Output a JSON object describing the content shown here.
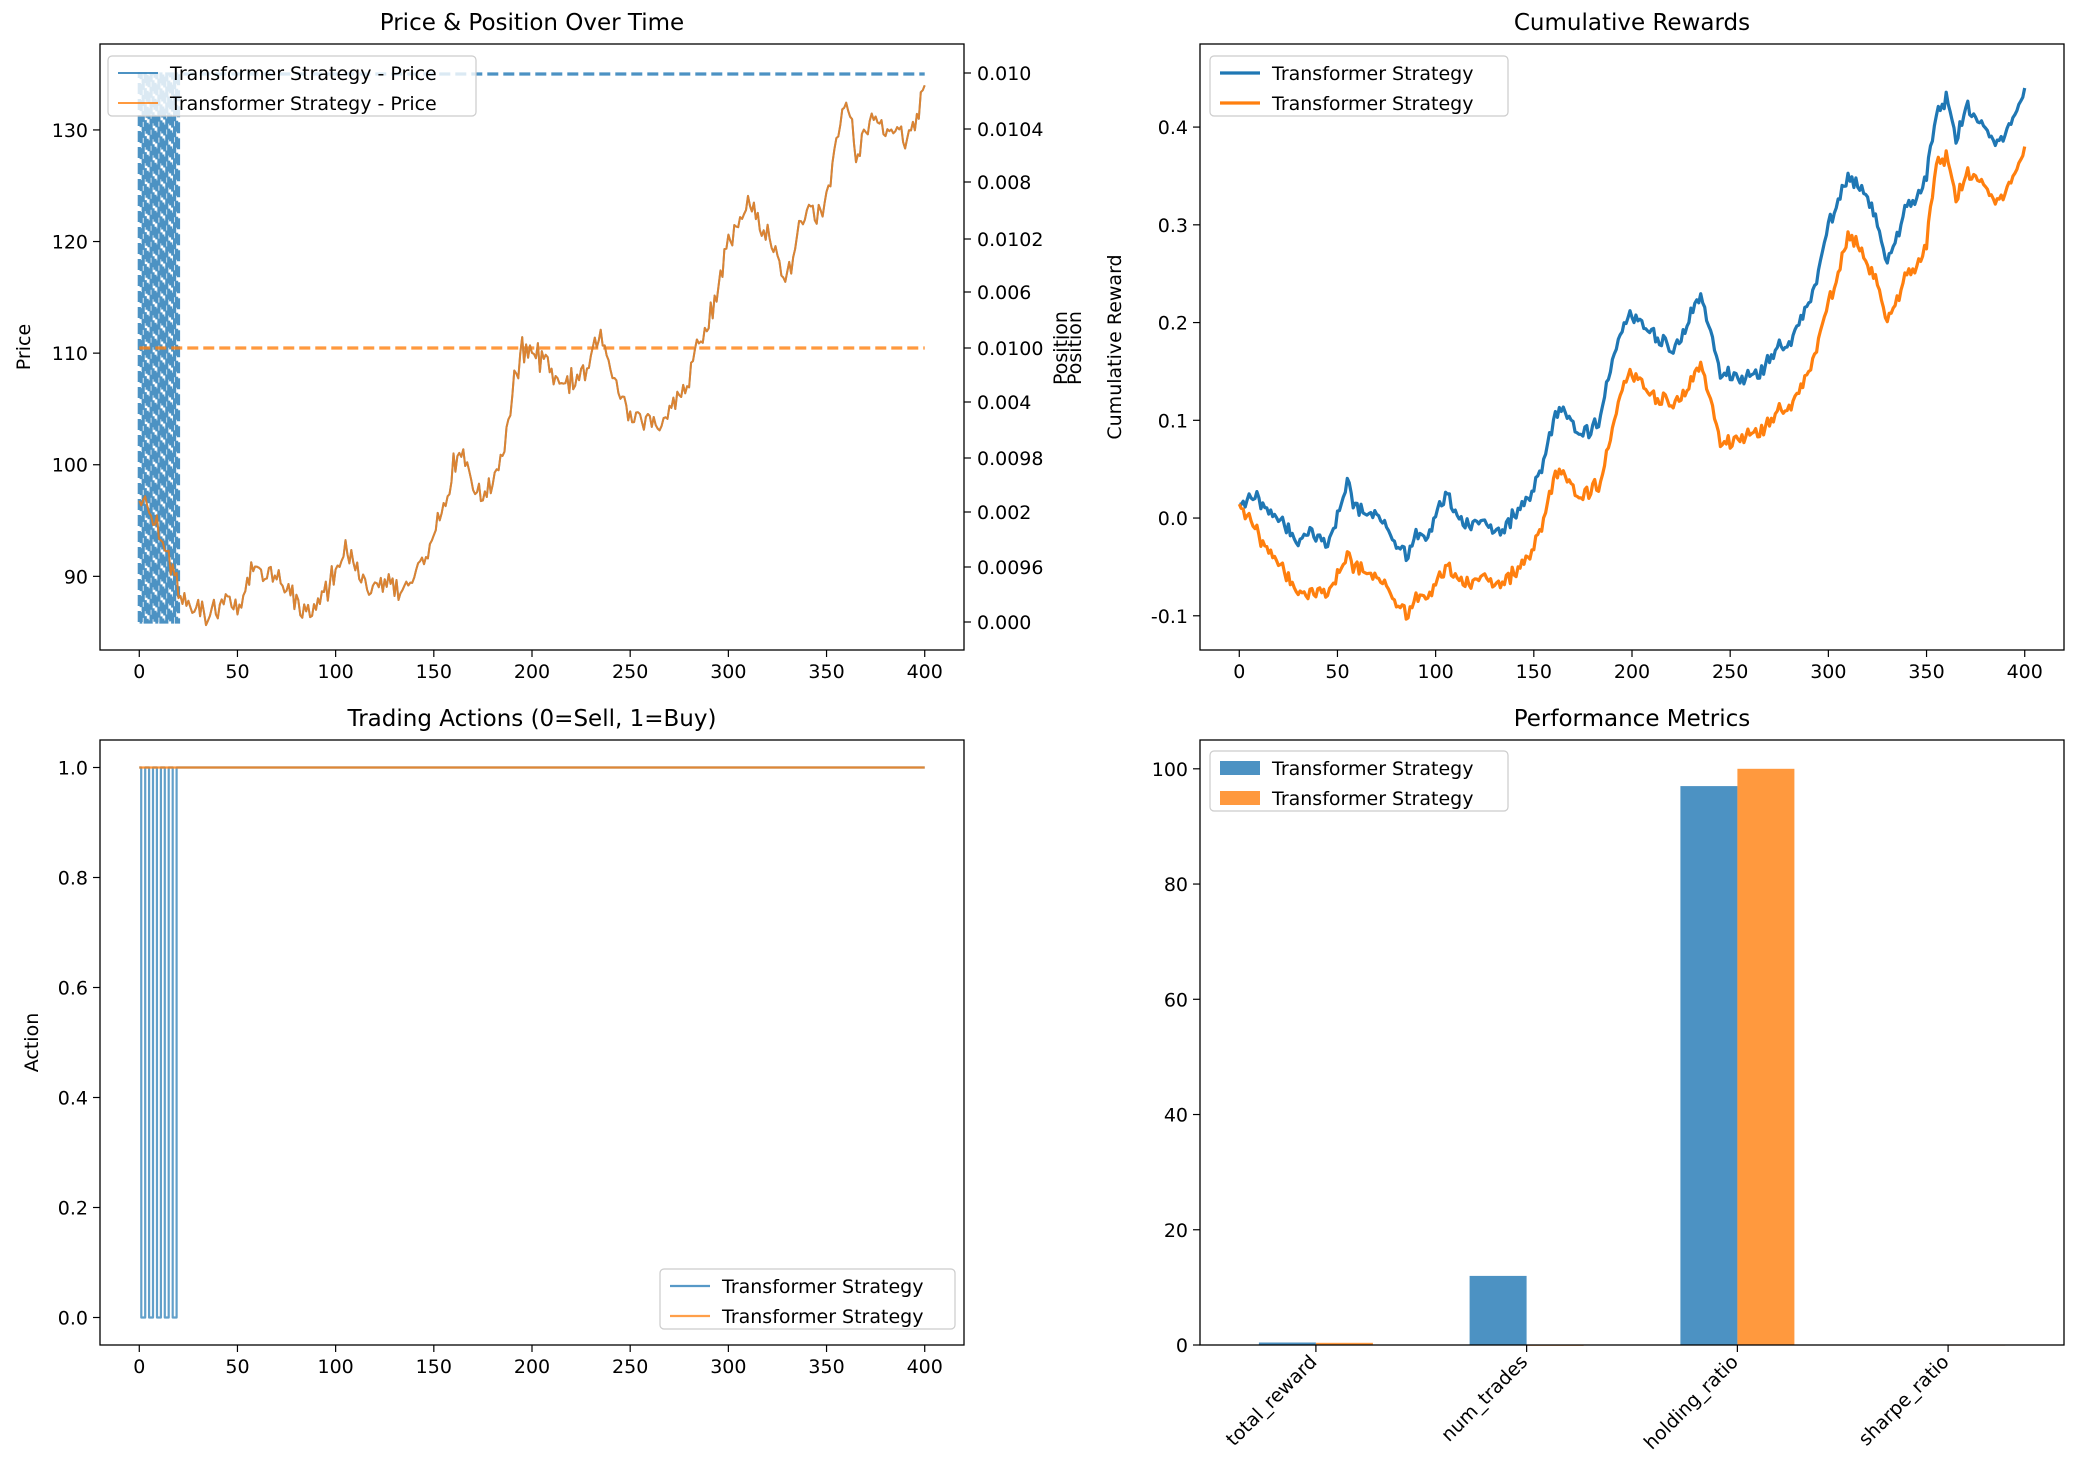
{
  "colors": {
    "blue": "#1f77b4",
    "orange": "#ff7f0e",
    "mixed": "#c8874a"
  },
  "chart_data": [
    {
      "id": "price",
      "type": "line",
      "title": "Price & Position Over Time",
      "xlabel": "",
      "ylabel": "Price",
      "y2label": "Position",
      "xlim": [
        -20,
        420
      ],
      "ylim": [
        83.4,
        137.7
      ],
      "xticks": [
        "0",
        "50",
        "100",
        "150",
        "200",
        "250",
        "300",
        "350",
        "400"
      ],
      "yticks": [
        "90",
        "100",
        "110",
        "120",
        "130"
      ],
      "y2ticks_blue": [
        "0.000",
        "0.002",
        "0.004",
        "0.006",
        "0.008",
        "0.010"
      ],
      "y2ticks_orange": [
        "0.0096",
        "0.0098",
        "0.0100",
        "0.0102",
        "0.0104"
      ],
      "legend": [
        "Transformer Strategy - Price",
        "Transformer Strategy - Price"
      ],
      "price_points": [
        [
          0,
          97.5
        ],
        [
          5,
          96.2
        ],
        [
          10,
          94.5
        ],
        [
          15,
          91.0
        ],
        [
          20,
          89.0
        ],
        [
          25,
          87.6
        ],
        [
          30,
          88.0
        ],
        [
          35,
          86.0
        ],
        [
          40,
          87.2
        ],
        [
          45,
          88.0
        ],
        [
          50,
          87.0
        ],
        [
          55,
          89.0
        ],
        [
          60,
          91.5
        ],
        [
          65,
          90.0
        ],
        [
          70,
          91.0
        ],
        [
          75,
          89.0
        ],
        [
          80,
          87.5
        ],
        [
          85,
          86.5
        ],
        [
          90,
          87.5
        ],
        [
          95,
          89.0
        ],
        [
          100,
          90.0
        ],
        [
          105,
          92.5
        ],
        [
          110,
          90.5
        ],
        [
          115,
          89.5
        ],
        [
          120,
          89.0
        ],
        [
          125,
          90.0
        ],
        [
          130,
          88.5
        ],
        [
          135,
          88.8
        ],
        [
          140,
          89.5
        ],
        [
          145,
          91.5
        ],
        [
          150,
          94.0
        ],
        [
          155,
          96.0
        ],
        [
          160,
          100.0
        ],
        [
          165,
          100.5
        ],
        [
          170,
          98.0
        ],
        [
          175,
          97.0
        ],
        [
          180,
          98.0
        ],
        [
          185,
          100.5
        ],
        [
          190,
          107.0
        ],
        [
          195,
          110.5
        ],
        [
          200,
          110.5
        ],
        [
          205,
          109.5
        ],
        [
          210,
          108.5
        ],
        [
          215,
          107.0
        ],
        [
          220,
          108.0
        ],
        [
          225,
          107.5
        ],
        [
          230,
          110.0
        ],
        [
          235,
          112.0
        ],
        [
          240,
          108.5
        ],
        [
          245,
          106.0
        ],
        [
          250,
          104.5
        ],
        [
          255,
          103.5
        ],
        [
          260,
          104.0
        ],
        [
          265,
          103.5
        ],
        [
          270,
          105.0
        ],
        [
          275,
          106.0
        ],
        [
          280,
          108.0
        ],
        [
          285,
          111.0
        ],
        [
          290,
          113.0
        ],
        [
          295,
          116.0
        ],
        [
          300,
          120.0
        ],
        [
          305,
          122.0
        ],
        [
          310,
          124.0
        ],
        [
          315,
          122.0
        ],
        [
          320,
          121.0
        ],
        [
          325,
          118.0
        ],
        [
          330,
          117.0
        ],
        [
          335,
          120.0
        ],
        [
          340,
          123.0
        ],
        [
          345,
          122.0
        ],
        [
          350,
          123.5
        ],
        [
          355,
          129.0
        ],
        [
          360,
          133.0
        ],
        [
          365,
          128.0
        ],
        [
          370,
          130.0
        ],
        [
          375,
          131.0
        ],
        [
          380,
          130.0
        ],
        [
          385,
          129.5
        ],
        [
          390,
          129.0
        ],
        [
          395,
          131.0
        ],
        [
          400,
          134.0
        ]
      ],
      "position_orange": 0.01,
      "position_blue_end": 0.01
    },
    {
      "id": "cumulative",
      "type": "line",
      "title": "Cumulative Rewards",
      "xlabel": "",
      "ylabel": "Cumulative Reward",
      "xlim": [
        -20,
        420
      ],
      "ylim": [
        -0.135,
        0.485
      ],
      "xticks": [
        "0",
        "50",
        "100",
        "150",
        "200",
        "250",
        "300",
        "350",
        "400"
      ],
      "yticks": [
        "-0.1",
        "0.0",
        "0.1",
        "0.2",
        "0.3",
        "0.4"
      ],
      "legend": [
        "Transformer Strategy",
        "Transformer Strategy"
      ],
      "series": [
        {
          "color": "blue",
          "points": [
            [
              0,
              0.02
            ],
            [
              5,
              0.02
            ],
            [
              10,
              0.018
            ],
            [
              15,
              0.005
            ],
            [
              20,
              -0.005
            ],
            [
              25,
              -0.01
            ],
            [
              30,
              -0.03
            ],
            [
              35,
              -0.015
            ],
            [
              40,
              -0.02
            ],
            [
              45,
              -0.03
            ],
            [
              50,
              0.0
            ],
            [
              55,
              0.035
            ],
            [
              60,
              0.01
            ],
            [
              65,
              0.0
            ],
            [
              70,
              0.005
            ],
            [
              75,
              -0.01
            ],
            [
              80,
              -0.03
            ],
            [
              85,
              -0.04
            ],
            [
              90,
              -0.015
            ],
            [
              95,
              -0.02
            ],
            [
              100,
              0.0
            ],
            [
              105,
              0.025
            ],
            [
              110,
              0.01
            ],
            [
              115,
              -0.005
            ],
            [
              120,
              -0.01
            ],
            [
              125,
              -0.005
            ],
            [
              130,
              -0.015
            ],
            [
              135,
              -0.012
            ],
            [
              140,
              0.005
            ],
            [
              145,
              0.01
            ],
            [
              150,
              0.03
            ],
            [
              155,
              0.06
            ],
            [
              160,
              0.1
            ],
            [
              165,
              0.115
            ],
            [
              170,
              0.095
            ],
            [
              175,
              0.085
            ],
            [
              180,
              0.09
            ],
            [
              185,
              0.11
            ],
            [
              190,
              0.16
            ],
            [
              195,
              0.2
            ],
            [
              200,
              0.21
            ],
            [
              205,
              0.2
            ],
            [
              210,
              0.19
            ],
            [
              215,
              0.18
            ],
            [
              220,
              0.17
            ],
            [
              225,
              0.18
            ],
            [
              230,
              0.21
            ],
            [
              235,
              0.23
            ],
            [
              240,
              0.19
            ],
            [
              245,
              0.15
            ],
            [
              250,
              0.145
            ],
            [
              255,
              0.14
            ],
            [
              260,
              0.15
            ],
            [
              265,
              0.145
            ],
            [
              270,
              0.165
            ],
            [
              275,
              0.18
            ],
            [
              280,
              0.175
            ],
            [
              285,
              0.2
            ],
            [
              290,
              0.22
            ],
            [
              295,
              0.25
            ],
            [
              300,
              0.3
            ],
            [
              305,
              0.325
            ],
            [
              310,
              0.35
            ],
            [
              315,
              0.34
            ],
            [
              320,
              0.33
            ],
            [
              325,
              0.3
            ],
            [
              330,
              0.26
            ],
            [
              335,
              0.285
            ],
            [
              340,
              0.32
            ],
            [
              345,
              0.33
            ],
            [
              350,
              0.35
            ],
            [
              355,
              0.41
            ],
            [
              360,
              0.43
            ],
            [
              365,
              0.39
            ],
            [
              370,
              0.42
            ],
            [
              375,
              0.41
            ],
            [
              380,
              0.4
            ],
            [
              385,
              0.38
            ],
            [
              390,
              0.39
            ],
            [
              395,
              0.41
            ],
            [
              400,
              0.44
            ]
          ]
        },
        {
          "color": "orange",
          "points": [
            [
              0,
              0.02
            ],
            [
              5,
              0.0
            ],
            [
              10,
              -0.02
            ],
            [
              15,
              -0.035
            ],
            [
              20,
              -0.05
            ],
            [
              25,
              -0.06
            ],
            [
              30,
              -0.08
            ],
            [
              35,
              -0.08
            ],
            [
              40,
              -0.075
            ],
            [
              45,
              -0.08
            ],
            [
              50,
              -0.06
            ],
            [
              55,
              -0.04
            ],
            [
              60,
              -0.05
            ],
            [
              65,
              -0.06
            ],
            [
              70,
              -0.06
            ],
            [
              75,
              -0.07
            ],
            [
              80,
              -0.09
            ],
            [
              85,
              -0.1
            ],
            [
              90,
              -0.08
            ],
            [
              95,
              -0.08
            ],
            [
              100,
              -0.07
            ],
            [
              105,
              -0.05
            ],
            [
              110,
              -0.055
            ],
            [
              115,
              -0.065
            ],
            [
              120,
              -0.07
            ],
            [
              125,
              -0.06
            ],
            [
              130,
              -0.07
            ],
            [
              135,
              -0.065
            ],
            [
              140,
              -0.055
            ],
            [
              145,
              -0.05
            ],
            [
              150,
              -0.03
            ],
            [
              155,
              0.0
            ],
            [
              160,
              0.04
            ],
            [
              165,
              0.05
            ],
            [
              170,
              0.03
            ],
            [
              175,
              0.02
            ],
            [
              180,
              0.03
            ],
            [
              185,
              0.04
            ],
            [
              190,
              0.09
            ],
            [
              195,
              0.14
            ],
            [
              200,
              0.15
            ],
            [
              205,
              0.14
            ],
            [
              210,
              0.125
            ],
            [
              215,
              0.12
            ],
            [
              220,
              0.115
            ],
            [
              225,
              0.12
            ],
            [
              230,
              0.14
            ],
            [
              235,
              0.16
            ],
            [
              240,
              0.12
            ],
            [
              245,
              0.08
            ],
            [
              250,
              0.075
            ],
            [
              255,
              0.08
            ],
            [
              260,
              0.09
            ],
            [
              265,
              0.085
            ],
            [
              270,
              0.1
            ],
            [
              275,
              0.115
            ],
            [
              280,
              0.11
            ],
            [
              285,
              0.13
            ],
            [
              290,
              0.15
            ],
            [
              295,
              0.18
            ],
            [
              300,
              0.22
            ],
            [
              305,
              0.25
            ],
            [
              310,
              0.29
            ],
            [
              315,
              0.28
            ],
            [
              320,
              0.26
            ],
            [
              325,
              0.24
            ],
            [
              330,
              0.2
            ],
            [
              335,
              0.22
            ],
            [
              340,
              0.25
            ],
            [
              345,
              0.26
            ],
            [
              350,
              0.28
            ],
            [
              355,
              0.36
            ],
            [
              360,
              0.37
            ],
            [
              365,
              0.33
            ],
            [
              370,
              0.35
            ],
            [
              375,
              0.35
            ],
            [
              380,
              0.34
            ],
            [
              385,
              0.32
            ],
            [
              390,
              0.33
            ],
            [
              395,
              0.35
            ],
            [
              400,
              0.38
            ]
          ]
        }
      ]
    },
    {
      "id": "actions",
      "type": "line",
      "title": "Trading Actions (0=Sell, 1=Buy)",
      "xlabel": "",
      "ylabel": "Action",
      "xlim": [
        -20,
        420
      ],
      "ylim": [
        -0.05,
        1.05
      ],
      "xticks": [
        "0",
        "50",
        "100",
        "150",
        "200",
        "250",
        "300",
        "350",
        "400"
      ],
      "yticks": [
        "0.0",
        "0.2",
        "0.4",
        "0.6",
        "0.8",
        "1.0"
      ],
      "legend": [
        "Transformer Strategy",
        "Transformer Strategy"
      ],
      "blue_switch_points": [
        1,
        3,
        5,
        7,
        9,
        11,
        13,
        15,
        17,
        19
      ],
      "orange_value": 1
    },
    {
      "id": "metrics",
      "type": "bar",
      "title": "Performance Metrics",
      "categories": [
        "total_reward",
        "num_trades",
        "holding_ratio",
        "sharpe_ratio"
      ],
      "ylim": [
        0,
        105
      ],
      "yticks": [
        "0",
        "20",
        "40",
        "60",
        "80",
        "100"
      ],
      "legend": [
        "Transformer Strategy",
        "Transformer Strategy"
      ],
      "series": [
        {
          "color": "blue",
          "values": [
            0.44,
            12,
            97,
            0.05
          ]
        },
        {
          "color": "orange",
          "values": [
            0.38,
            0,
            100,
            0.04
          ]
        }
      ]
    }
  ]
}
